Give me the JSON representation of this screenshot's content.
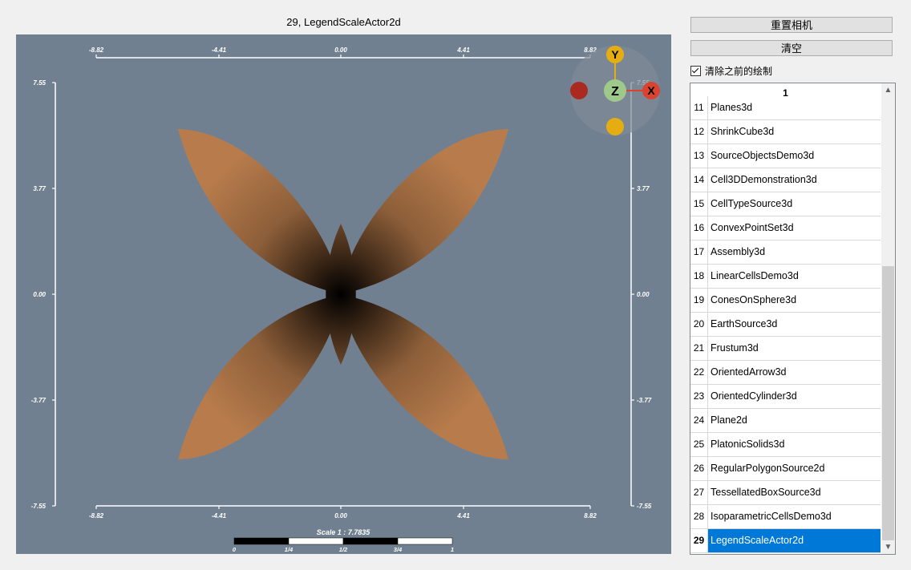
{
  "view": {
    "title": "29, LegendScaleActor2d",
    "background": "#708090",
    "shape_color": "#b87c4c",
    "axes": {
      "x_ticks": [
        "-8.82",
        "-4.41",
        "0.00",
        "4.41",
        "8.82"
      ],
      "y_ticks": [
        "7.55",
        "3.77",
        "0.00",
        "-3.77",
        "-7.55"
      ]
    },
    "scale_legend": {
      "label": "Scale 1 : 7.7835",
      "ticks": [
        "0",
        "1/4",
        "1/2",
        "3/4",
        "1"
      ]
    },
    "orientation_widget": {
      "labels": {
        "x": "X",
        "y": "Y",
        "z": "Z"
      },
      "colors": {
        "x": "#d9432f",
        "y": "#e4ae12",
        "z": "#9ec98a",
        "neg_x": "#aa2a21",
        "neg_y": "#e4ae12"
      }
    }
  },
  "controls": {
    "reset_camera_label": "重置相机",
    "clear_label": "清空",
    "clear_previous_label": "清除之前的绘制",
    "clear_previous_checked": true
  },
  "list": {
    "header": "1",
    "items": [
      {
        "index": "11",
        "name": "Planes3d"
      },
      {
        "index": "12",
        "name": "ShrinkCube3d"
      },
      {
        "index": "13",
        "name": "SourceObjectsDemo3d"
      },
      {
        "index": "14",
        "name": "Cell3DDemonstration3d"
      },
      {
        "index": "15",
        "name": "CellTypeSource3d"
      },
      {
        "index": "16",
        "name": "ConvexPointSet3d"
      },
      {
        "index": "17",
        "name": "Assembly3d"
      },
      {
        "index": "18",
        "name": "LinearCellsDemo3d"
      },
      {
        "index": "19",
        "name": "ConesOnSphere3d"
      },
      {
        "index": "20",
        "name": "EarthSource3d"
      },
      {
        "index": "21",
        "name": "Frustum3d"
      },
      {
        "index": "22",
        "name": "OrientedArrow3d"
      },
      {
        "index": "23",
        "name": "OrientedCylinder3d"
      },
      {
        "index": "24",
        "name": "Plane2d"
      },
      {
        "index": "25",
        "name": "PlatonicSolids3d"
      },
      {
        "index": "26",
        "name": "RegularPolygonSource2d"
      },
      {
        "index": "27",
        "name": "TessellatedBoxSource3d"
      },
      {
        "index": "28",
        "name": "IsoparametricCellsDemo3d"
      },
      {
        "index": "29",
        "name": "LegendScaleActor2d"
      }
    ],
    "selected_index": "29",
    "selected_color": "#0078d7"
  }
}
